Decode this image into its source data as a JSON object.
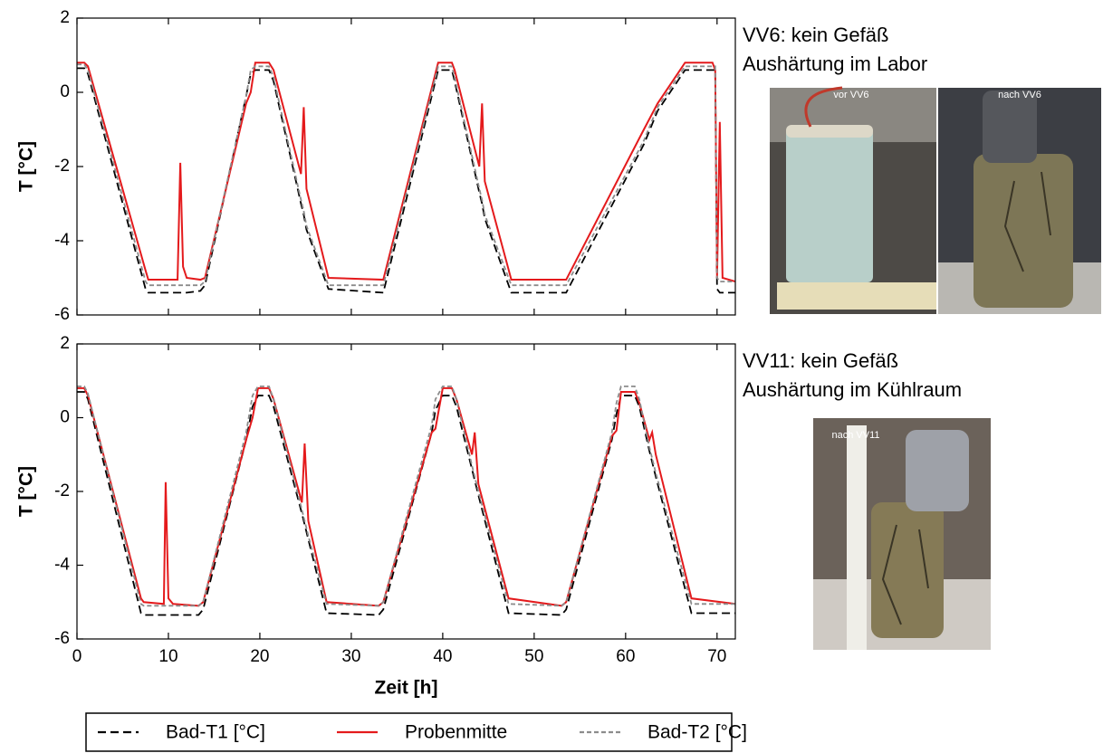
{
  "chart_data": [
    {
      "type": "line",
      "ylabel": "T [°C]",
      "xlim": [
        0,
        72
      ],
      "ylim": [
        -6,
        2
      ],
      "xticks": [
        0,
        10,
        20,
        30,
        40,
        50,
        60,
        70
      ],
      "yticks": [
        -6,
        -4,
        -2,
        0,
        2
      ],
      "show_xtick_labels": false,
      "x": [
        0,
        0.8,
        1.2,
        7.5,
        7.8,
        11.0,
        11.3,
        11.6,
        12.0,
        13.5,
        14,
        18.5,
        19.0,
        19.5,
        21.0,
        21.5,
        24.5,
        24.8,
        25.1,
        27.5,
        33.5,
        39.5,
        41.0,
        41.3,
        44.0,
        44.3,
        44.6,
        47.5,
        53.5,
        62,
        63.5,
        66.5,
        67,
        69.5,
        69.8,
        70.0,
        70.3,
        70.6,
        72
      ],
      "series": [
        {
          "name": "Bad-T1 [°C]",
          "color": "#000000",
          "linestyle": "dashed",
          "values": [
            0.65,
            0.65,
            0.5,
            -5.3,
            -5.4,
            -5.4,
            -5.4,
            -5.4,
            -5.4,
            -5.35,
            -5.2,
            -0.1,
            0.5,
            0.6,
            0.6,
            0.3,
            -3.0,
            -3.3,
            -3.7,
            -5.3,
            -5.4,
            0.6,
            0.6,
            0.3,
            -2.7,
            -3.0,
            -3.4,
            -5.4,
            -5.4,
            -1.4,
            -0.5,
            0.6,
            0.6,
            0.6,
            0.6,
            -5.3,
            -5.4,
            -5.4,
            -5.4
          ]
        },
        {
          "name": "Probenmitte",
          "color": "#e41a1c",
          "linestyle": "solid",
          "values": [
            0.8,
            0.8,
            0.7,
            -4.8,
            -5.05,
            -5.05,
            -1.9,
            -4.7,
            -5.0,
            -5.05,
            -5.0,
            -0.3,
            0.0,
            0.8,
            0.8,
            0.6,
            -2.2,
            -0.4,
            -2.6,
            -5.0,
            -5.05,
            0.8,
            0.8,
            0.6,
            -2.0,
            -0.3,
            -2.4,
            -5.05,
            -5.05,
            -1.0,
            -0.3,
            0.8,
            0.8,
            0.8,
            0.6,
            -5.0,
            -0.8,
            -5.0,
            -5.1
          ]
        },
        {
          "name": "Bad-T2  [°C]",
          "color": "#8c8c8c",
          "linestyle": "dotted",
          "values": [
            0.75,
            0.75,
            0.6,
            -5.1,
            -5.2,
            -5.2,
            -5.2,
            -5.2,
            -5.2,
            -5.2,
            -5.1,
            -0.1,
            0.6,
            0.7,
            0.7,
            0.4,
            -2.9,
            -3.2,
            -3.6,
            -5.2,
            -5.2,
            0.7,
            0.7,
            0.4,
            -2.6,
            -2.9,
            -3.3,
            -5.2,
            -5.2,
            -1.3,
            -0.4,
            0.7,
            0.7,
            0.7,
            0.7,
            -5.0,
            -5.1,
            -5.1,
            -5.1
          ]
        }
      ]
    },
    {
      "type": "line",
      "ylabel": "T [°C]",
      "xlabel": "Zeit [h]",
      "xlim": [
        0,
        72
      ],
      "ylim": [
        -6,
        2
      ],
      "xticks": [
        0,
        10,
        20,
        30,
        40,
        50,
        60,
        70
      ],
      "yticks": [
        -6,
        -4,
        -2,
        0,
        2
      ],
      "show_xtick_labels": true,
      "x": [
        0,
        0.8,
        1.2,
        7.0,
        7.3,
        9.5,
        9.7,
        10.0,
        10.5,
        13.3,
        13.8,
        18.5,
        19.2,
        19.8,
        21.0,
        21.5,
        24.6,
        24.9,
        25.3,
        27.3,
        33.0,
        33.5,
        38.8,
        39.2,
        40.0,
        41.0,
        41.5,
        43.2,
        43.5,
        43.9,
        47.2,
        53.0,
        53.5,
        58.5,
        59.0,
        59.5,
        61.0,
        61.5,
        62.6,
        62.9,
        63.3,
        67.2,
        72
      ],
      "series": [
        {
          "name": "Bad-T1 [°C]",
          "color": "#000000",
          "linestyle": "dashed",
          "values": [
            0.7,
            0.7,
            0.5,
            -5.3,
            -5.35,
            -5.35,
            -5.35,
            -5.35,
            -5.35,
            -5.35,
            -5.2,
            -0.6,
            0.3,
            0.6,
            0.6,
            0.3,
            -2.6,
            -2.9,
            -3.3,
            -5.3,
            -5.35,
            -5.2,
            -0.4,
            0.2,
            0.6,
            0.6,
            0.3,
            -1.4,
            -1.7,
            -2.1,
            -5.3,
            -5.35,
            -5.2,
            -0.6,
            0.1,
            0.6,
            0.6,
            0.3,
            -0.9,
            -1.2,
            -1.6,
            -5.3,
            -5.3
          ]
        },
        {
          "name": "Probenmitte",
          "color": "#e41a1c",
          "linestyle": "solid",
          "values": [
            0.8,
            0.8,
            0.6,
            -4.9,
            -5.0,
            -5.05,
            -1.75,
            -4.9,
            -5.05,
            -5.1,
            -5.0,
            -0.6,
            0.0,
            0.8,
            0.8,
            0.5,
            -2.3,
            -0.7,
            -2.8,
            -5.0,
            -5.1,
            -5.0,
            -0.4,
            -0.3,
            0.8,
            0.8,
            0.5,
            -1.0,
            -0.4,
            -1.8,
            -4.9,
            -5.1,
            -5.0,
            -0.5,
            -0.35,
            0.7,
            0.7,
            0.4,
            -0.6,
            -0.4,
            -1.0,
            -4.9,
            -5.05
          ]
        },
        {
          "name": "Bad-T2  [°C]",
          "color": "#8c8c8c",
          "linestyle": "dotted",
          "values": [
            0.85,
            0.85,
            0.65,
            -5.05,
            -5.1,
            -5.1,
            -5.1,
            -5.1,
            -5.1,
            -5.1,
            -5.0,
            -0.4,
            0.6,
            0.85,
            0.85,
            0.5,
            -2.5,
            -2.8,
            -3.2,
            -5.05,
            -5.1,
            -5.0,
            -0.2,
            0.5,
            0.85,
            0.85,
            0.5,
            -1.3,
            -1.6,
            -2.0,
            -5.05,
            -5.1,
            -5.0,
            -0.4,
            0.4,
            0.85,
            0.85,
            0.5,
            -0.8,
            -1.1,
            -1.5,
            -5.05,
            -5.05
          ]
        }
      ]
    }
  ],
  "panels": [
    {
      "lines": [
        "VV6: kein Gefäß",
        "Aushärtung im Labor"
      ],
      "photos": [
        "vor VV6",
        "nach VV6"
      ]
    },
    {
      "lines": [
        "VV11: kein Gefäß",
        "Aushärtung im Kühlraum"
      ],
      "photos": [
        "nach VV11"
      ]
    }
  ]
}
